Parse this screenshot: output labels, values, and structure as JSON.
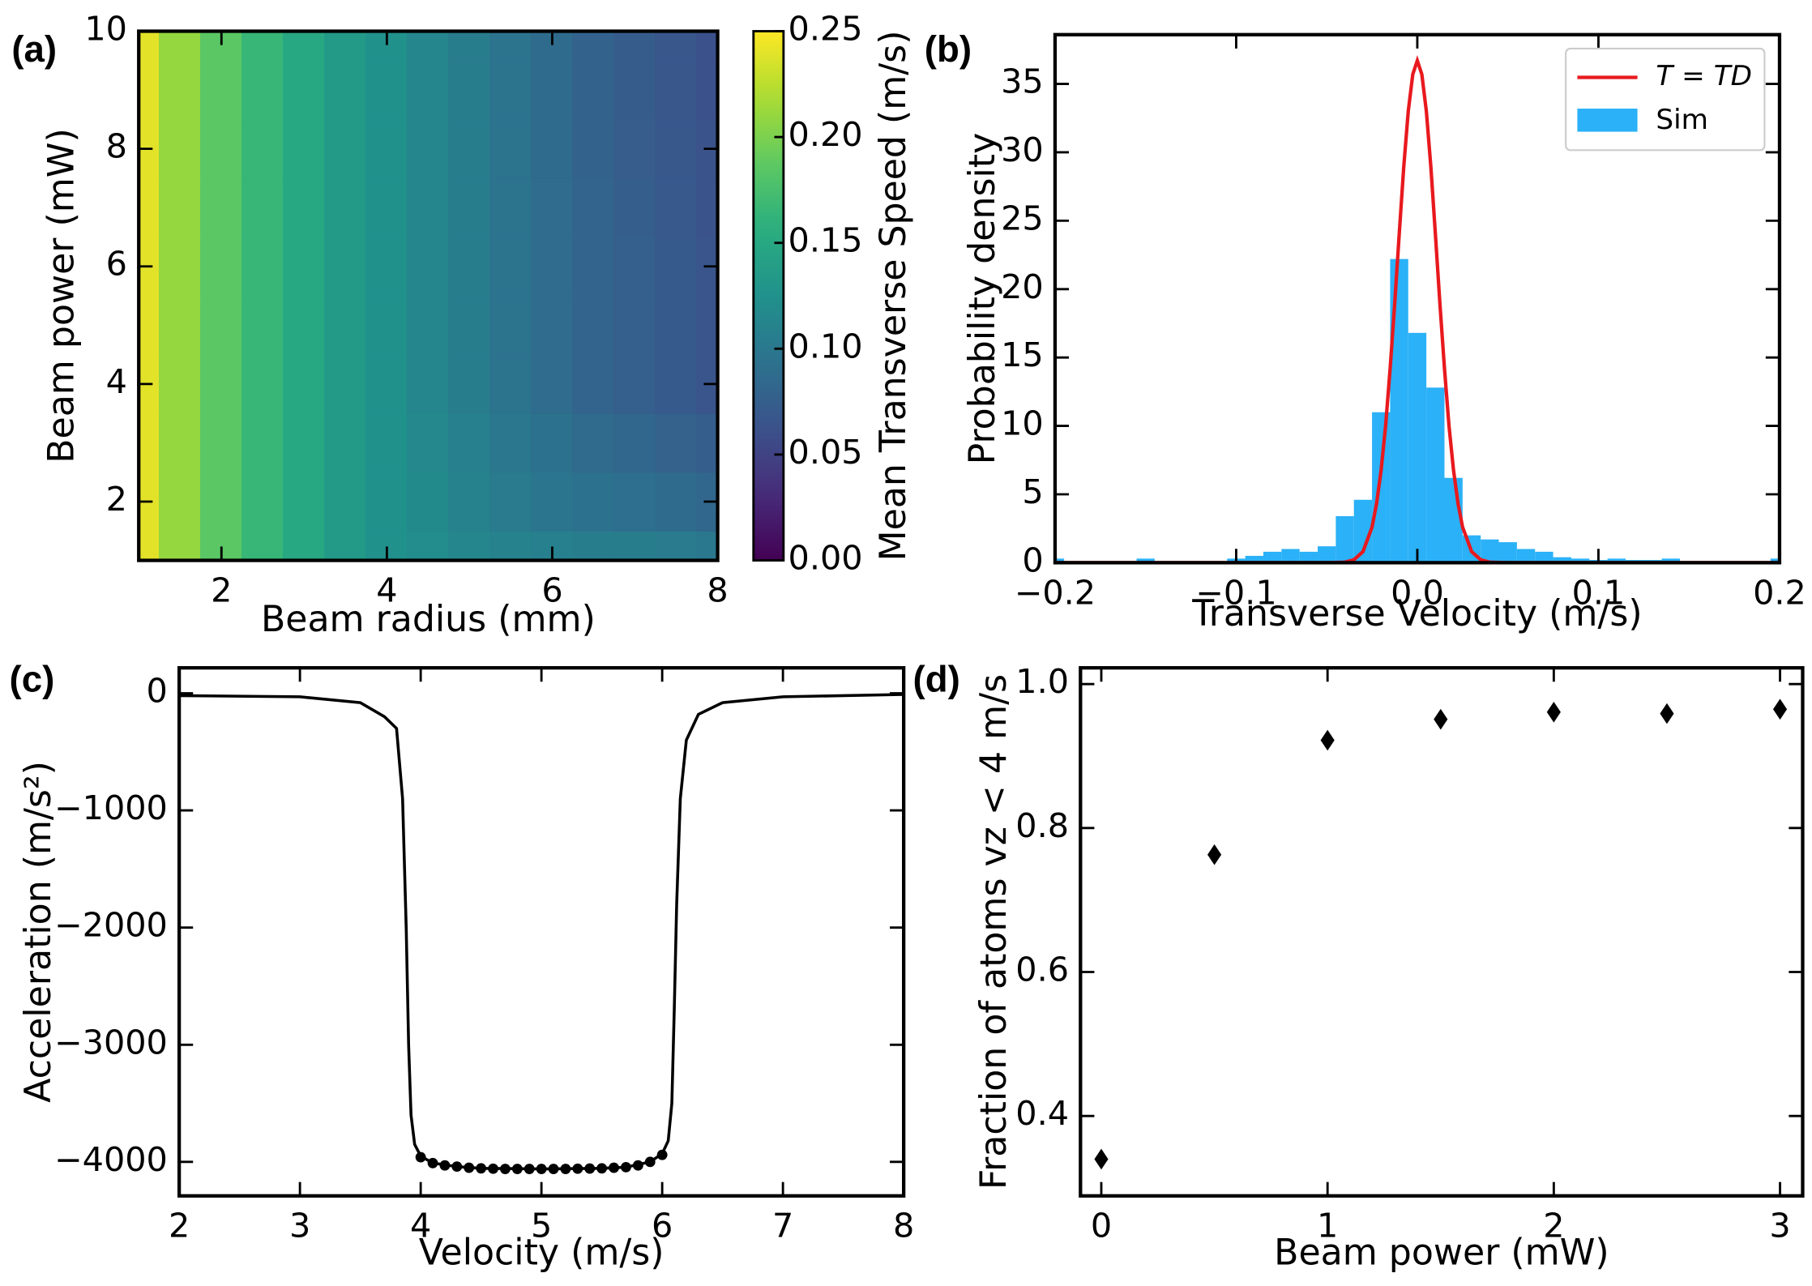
{
  "chart_data": [
    {
      "type": "heatmap",
      "panel_label": "(a)",
      "xlabel": "Beam radius (mm)",
      "ylabel": "Beam power (mW)",
      "colormap": "viridis",
      "x": [
        1,
        1.5,
        2,
        2.5,
        3,
        3.5,
        4,
        4.5,
        5,
        5.5,
        6,
        6.5,
        7,
        7.5,
        8
      ],
      "y": [
        1,
        2,
        3,
        4,
        5,
        6,
        7,
        8,
        9,
        10
      ],
      "z": [
        [
          0.24,
          0.21,
          0.185,
          0.165,
          0.15,
          0.135,
          0.125,
          0.12,
          0.115,
          0.11,
          0.108,
          0.105,
          0.105,
          0.103,
          0.1
        ],
        [
          0.24,
          0.21,
          0.185,
          0.165,
          0.15,
          0.135,
          0.125,
          0.118,
          0.11,
          0.103,
          0.098,
          0.093,
          0.09,
          0.087,
          0.083
        ],
        [
          0.24,
          0.21,
          0.185,
          0.165,
          0.15,
          0.135,
          0.125,
          0.116,
          0.108,
          0.099,
          0.093,
          0.086,
          0.083,
          0.078,
          0.074
        ],
        [
          0.24,
          0.21,
          0.185,
          0.165,
          0.15,
          0.135,
          0.125,
          0.115,
          0.105,
          0.095,
          0.088,
          0.08,
          0.075,
          0.07,
          0.065
        ],
        [
          0.24,
          0.21,
          0.185,
          0.165,
          0.15,
          0.135,
          0.125,
          0.115,
          0.105,
          0.095,
          0.088,
          0.08,
          0.075,
          0.07,
          0.065
        ],
        [
          0.24,
          0.21,
          0.185,
          0.165,
          0.15,
          0.135,
          0.125,
          0.115,
          0.105,
          0.095,
          0.088,
          0.08,
          0.075,
          0.07,
          0.065
        ],
        [
          0.24,
          0.21,
          0.185,
          0.165,
          0.15,
          0.135,
          0.125,
          0.115,
          0.105,
          0.095,
          0.088,
          0.08,
          0.074,
          0.069,
          0.064
        ],
        [
          0.24,
          0.21,
          0.185,
          0.165,
          0.15,
          0.135,
          0.125,
          0.115,
          0.105,
          0.095,
          0.087,
          0.079,
          0.073,
          0.068,
          0.063
        ],
        [
          0.24,
          0.21,
          0.185,
          0.165,
          0.15,
          0.135,
          0.125,
          0.115,
          0.105,
          0.095,
          0.087,
          0.079,
          0.072,
          0.067,
          0.062
        ],
        [
          0.24,
          0.21,
          0.185,
          0.165,
          0.15,
          0.135,
          0.125,
          0.115,
          0.105,
          0.095,
          0.087,
          0.079,
          0.072,
          0.067,
          0.062
        ]
      ],
      "xlim": [
        1,
        8
      ],
      "ylim": [
        1,
        10
      ],
      "xticks": [
        2,
        4,
        6,
        8
      ],
      "yticks": [
        2,
        4,
        6,
        8,
        10
      ],
      "colorbar": {
        "label": "Mean Transverse Speed (m/s)",
        "lim": [
          0,
          0.25
        ],
        "ticks": [
          {
            "value": 0,
            "label": "0.00"
          },
          0.05,
          {
            "value": 0.1,
            "label": "0.10"
          },
          0.15,
          {
            "value": 0.2,
            "label": "0.20"
          },
          0.25
        ]
      }
    },
    {
      "type": "histogram",
      "panel_label": "(b)",
      "xlabel": "Transverse Velocity (m/s)",
      "ylabel": "Probability density",
      "name": "Sim",
      "color": "#2bb1f7",
      "bins": [
        -0.205,
        -0.195,
        -0.185,
        -0.175,
        -0.165,
        -0.155,
        -0.145,
        -0.135,
        -0.125,
        -0.115,
        -0.105,
        -0.095,
        -0.085,
        -0.075,
        -0.065,
        -0.055,
        -0.045,
        -0.035,
        -0.025,
        -0.015,
        -0.005,
        0.005,
        0.015,
        0.025,
        0.035,
        0.045,
        0.055,
        0.065,
        0.075,
        0.085,
        0.095,
        0.105,
        0.115,
        0.125,
        0.135,
        0.145,
        0.155,
        0.165,
        0.175,
        0.185,
        0.195,
        0.205
      ],
      "values": [
        0.3,
        0,
        0,
        0,
        0,
        0.3,
        0,
        0,
        0,
        0.1,
        0.3,
        0.5,
        0.8,
        1.0,
        0.8,
        1.2,
        3.4,
        4.6,
        11.0,
        22.2,
        16.8,
        12.8,
        6.2,
        2.0,
        1.7,
        1.5,
        1.0,
        0.8,
        0.4,
        0.3,
        0.2,
        0.3,
        0.2,
        0.2,
        0.3,
        0.1,
        0.1,
        0.1,
        0.1,
        0.1,
        0.3
      ],
      "overlay": {
        "type": "line",
        "name": "T = TD",
        "color": "#e8191e",
        "x": [
          -0.2,
          -0.05,
          -0.04,
          -0.035,
          -0.03,
          -0.025,
          -0.0225,
          -0.02,
          -0.0175,
          -0.015,
          -0.0125,
          -0.01,
          -0.0075,
          -0.005,
          -0.0025,
          0,
          0.0025,
          0.005,
          0.0075,
          0.01,
          0.0125,
          0.015,
          0.0175,
          0.02,
          0.0225,
          0.025,
          0.03,
          0.035,
          0.04,
          0.05,
          0.2
        ],
        "values": [
          0,
          0,
          0.04,
          0.21,
          0.81,
          2.6,
          4.31,
          6.75,
          10.0,
          14.2,
          18.9,
          24.0,
          28.9,
          33.0,
          35.7,
          36.7,
          35.7,
          33.0,
          28.9,
          24.0,
          18.9,
          14.2,
          10.0,
          6.75,
          4.31,
          2.6,
          0.81,
          0.21,
          0.04,
          0,
          0
        ]
      },
      "legend": "upper right",
      "xlim": [
        -0.2,
        0.2
      ],
      "ylim": [
        0,
        38.6
      ],
      "xticks": [
        {
          "value": -0.2,
          "label": "−0.2"
        },
        {
          "value": -0.1,
          "label": "−0.1"
        },
        {
          "value": 0,
          "label": "0.0"
        },
        0.1,
        0.2
      ],
      "yticks": [
        0,
        5,
        10,
        15,
        20,
        25,
        30,
        35
      ]
    },
    {
      "type": "line",
      "panel_label": "(c)",
      "xlabel": "Velocity (m/s)",
      "ylabel": "Acceleration (m/s²)",
      "series": [
        {
          "color": "#000000",
          "x": [
            2,
            3,
            3.5,
            3.7,
            3.8,
            3.85,
            3.88,
            3.9,
            3.92,
            3.95,
            4.0,
            4.1,
            4.3,
            4.5,
            5,
            5.5,
            5.7,
            5.9,
            6.0,
            6.05,
            6.08,
            6.1,
            6.12,
            6.15,
            6.2,
            6.3,
            6.5,
            7,
            8
          ],
          "values": [
            -20,
            -30,
            -80,
            -200,
            -300,
            -900,
            -2000,
            -3000,
            -3600,
            -3850,
            -3950,
            -4010,
            -4040,
            -4055,
            -4060,
            -4055,
            -4045,
            -4000,
            -3930,
            -3820,
            -3500,
            -2700,
            -1800,
            -900,
            -400,
            -180,
            -80,
            -30,
            -10
          ]
        },
        {
          "color": "#000000",
          "marker": "o",
          "x": [
            4.0,
            4.1,
            4.2,
            4.3,
            4.4,
            4.5,
            4.6,
            4.7,
            4.8,
            4.9,
            5.0,
            5.1,
            5.2,
            5.3,
            5.4,
            5.5,
            5.6,
            5.7,
            5.8,
            5.9,
            6.0
          ],
          "values": [
            -3960,
            -4010,
            -4030,
            -4040,
            -4050,
            -4055,
            -4058,
            -4060,
            -4060,
            -4060,
            -4060,
            -4060,
            -4060,
            -4058,
            -4057,
            -4055,
            -4050,
            -4045,
            -4030,
            -4000,
            -3940
          ]
        }
      ],
      "xlim": [
        2,
        8
      ],
      "ylim": [
        -4290,
        217
      ],
      "xticks": [
        2,
        3,
        4,
        5,
        6,
        7,
        8
      ],
      "yticks": [
        0,
        {
          "value": -1000,
          "label": "−1000"
        },
        {
          "value": -2000,
          "label": "−2000"
        },
        {
          "value": -3000,
          "label": "−3000"
        },
        {
          "value": -4000,
          "label": "−4000"
        }
      ]
    },
    {
      "type": "scatter",
      "panel_label": "(d)",
      "xlabel": "Beam power (mW)",
      "ylabel": "Fraction of atoms vz <  4 m/s",
      "color": "#000000",
      "marker": "d",
      "x": [
        0,
        0.5,
        1,
        1.5,
        2,
        2.5,
        3
      ],
      "values": [
        0.34,
        0.763,
        0.922,
        0.951,
        0.961,
        0.959,
        0.965
      ],
      "xlim": [
        -0.092,
        3.1
      ],
      "ylim": [
        0.289,
        1.0225
      ],
      "xticks": [
        0,
        1,
        2,
        3
      ],
      "yticks": [
        0.4,
        0.6,
        0.8,
        {
          "value": 1,
          "label": "1.0"
        }
      ]
    }
  ]
}
